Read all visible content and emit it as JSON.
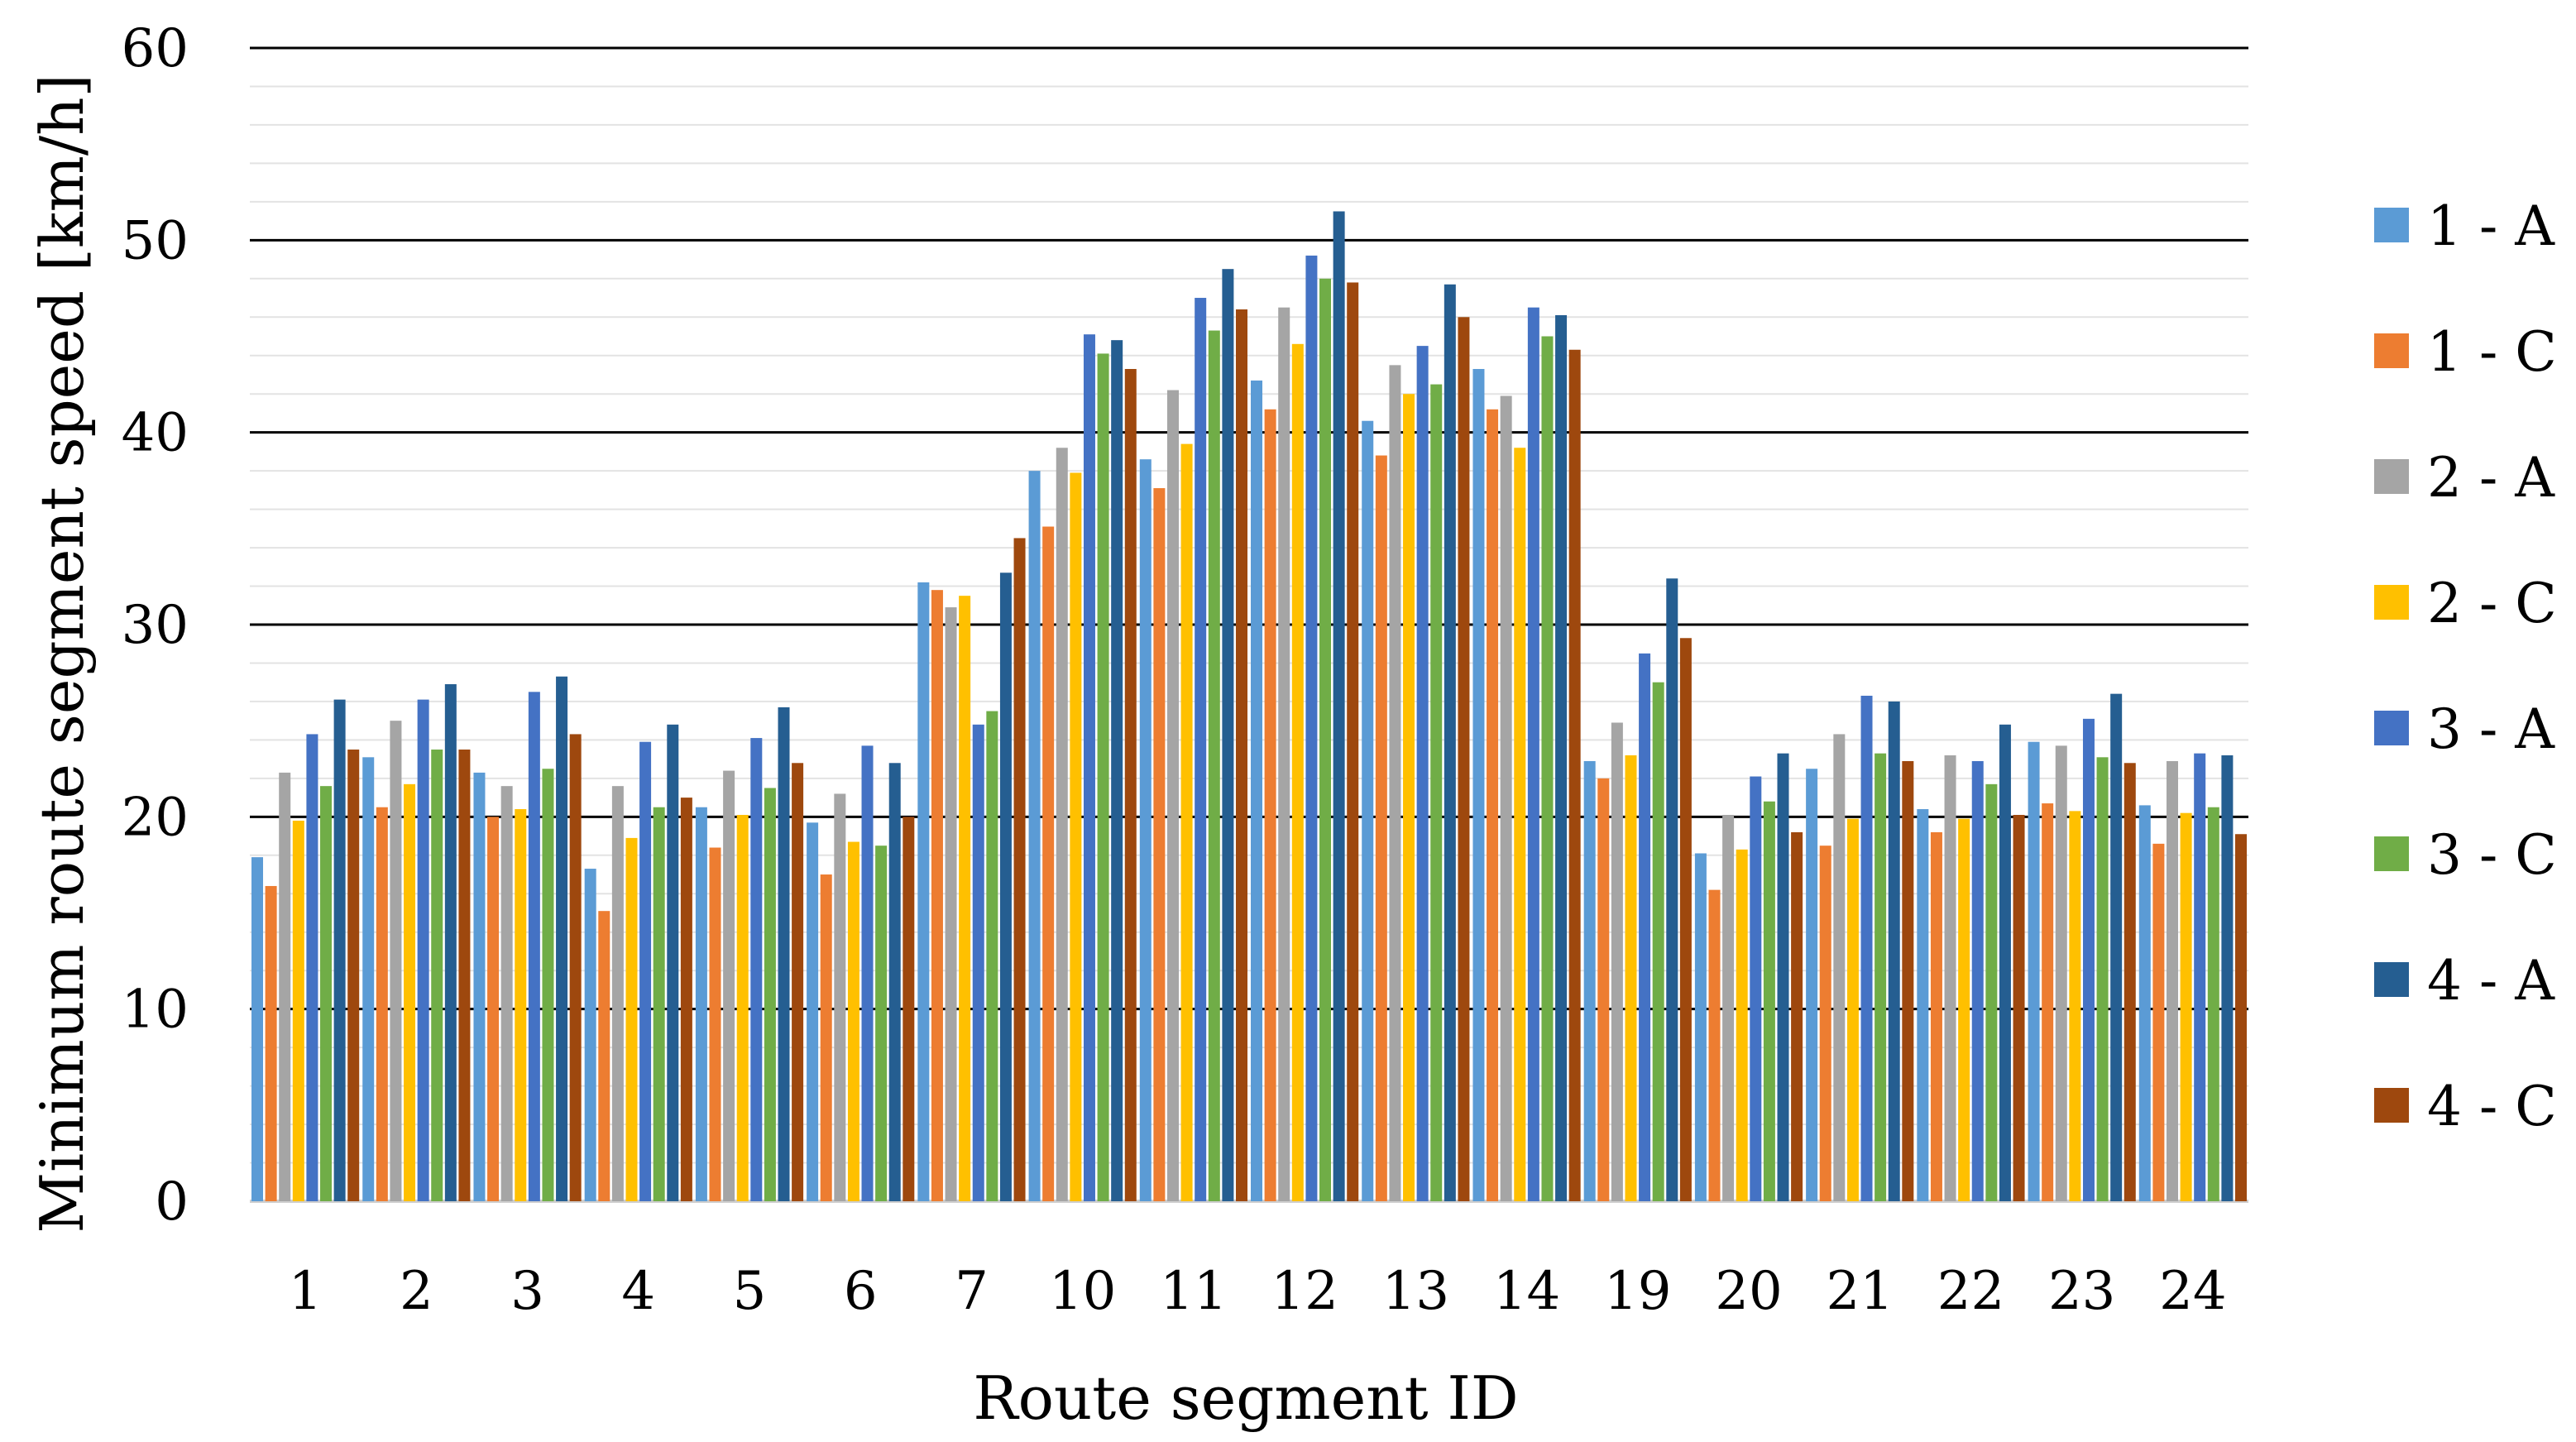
{
  "chart_data": {
    "type": "bar",
    "title": "",
    "xlabel": "Route segment ID",
    "ylabel": "Minimum route segment speed [km/h]",
    "ylim": [
      0,
      60
    ],
    "yticks": [
      0,
      10,
      20,
      30,
      40,
      50,
      60
    ],
    "grid": true,
    "legend_position": "right",
    "categories": [
      "1",
      "2",
      "3",
      "4",
      "5",
      "6",
      "7",
      "10",
      "11",
      "12",
      "13",
      "14",
      "19",
      "20",
      "21",
      "22",
      "23",
      "24"
    ],
    "series": [
      {
        "name": "1 - A",
        "color": "#5b9bd5",
        "values": [
          17.9,
          23.1,
          22.3,
          17.3,
          20.5,
          19.7,
          32.2,
          38.0,
          38.6,
          42.7,
          40.6,
          43.3,
          22.9,
          18.1,
          22.5,
          20.4,
          23.9,
          20.6
        ]
      },
      {
        "name": "1 - C",
        "color": "#ed7d31",
        "values": [
          16.4,
          20.5,
          20.0,
          15.1,
          18.4,
          17.0,
          31.8,
          35.1,
          37.1,
          41.2,
          38.8,
          41.2,
          22.0,
          16.2,
          18.5,
          19.2,
          20.7,
          18.6
        ]
      },
      {
        "name": "2 - A",
        "color": "#a5a5a5",
        "values": [
          22.3,
          25.0,
          21.6,
          21.6,
          22.4,
          21.2,
          30.9,
          39.2,
          42.2,
          46.5,
          43.5,
          41.9,
          24.9,
          20.1,
          24.3,
          23.2,
          23.7,
          22.9
        ]
      },
      {
        "name": "2 - C",
        "color": "#ffc000",
        "values": [
          19.8,
          21.7,
          20.4,
          18.9,
          20.1,
          18.7,
          31.5,
          37.9,
          39.4,
          44.6,
          42.0,
          39.2,
          23.2,
          18.3,
          19.9,
          19.9,
          20.3,
          20.2
        ]
      },
      {
        "name": "3 - A",
        "color": "#4472c4",
        "values": [
          24.3,
          26.1,
          26.5,
          23.9,
          24.1,
          23.7,
          24.8,
          45.1,
          47.0,
          49.2,
          44.5,
          46.5,
          28.5,
          22.1,
          26.3,
          22.9,
          25.1,
          23.3
        ]
      },
      {
        "name": "3 - C",
        "color": "#70ad47",
        "values": [
          21.6,
          23.5,
          22.5,
          20.5,
          21.5,
          18.5,
          25.5,
          44.1,
          45.3,
          48.0,
          42.5,
          45.0,
          27.0,
          20.8,
          23.3,
          21.7,
          23.1,
          20.5
        ]
      },
      {
        "name": "4 - A",
        "color": "#255e91",
        "values": [
          26.1,
          26.9,
          27.3,
          24.8,
          25.7,
          22.8,
          32.7,
          44.8,
          48.5,
          51.5,
          47.7,
          46.1,
          32.4,
          23.3,
          26.0,
          24.8,
          26.4,
          23.2
        ]
      },
      {
        "name": "4 - C",
        "color": "#9e480e",
        "values": [
          23.5,
          23.5,
          24.3,
          21.0,
          22.8,
          20.0,
          34.5,
          43.3,
          46.4,
          47.8,
          46.0,
          44.3,
          29.3,
          19.2,
          22.9,
          20.1,
          22.8,
          19.1
        ]
      }
    ]
  }
}
